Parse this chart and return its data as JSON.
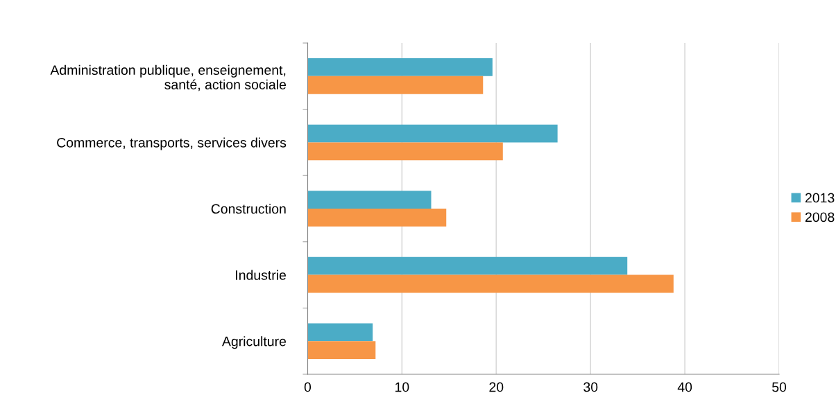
{
  "chart_data": {
    "type": "bar",
    "orientation": "horizontal",
    "categories": [
      "Administration publique, enseignement,\nsanté, action sociale",
      "Commerce, transports, services divers",
      "Construction",
      "Industrie",
      "Agriculture"
    ],
    "series": [
      {
        "name": "2013",
        "color": "#4bacc6",
        "values": [
          19.6,
          26.5,
          13.1,
          33.9,
          6.9
        ]
      },
      {
        "name": "2008",
        "color": "#f79646",
        "values": [
          18.6,
          20.7,
          14.7,
          38.8,
          7.2
        ]
      }
    ],
    "xlim": [
      0,
      50
    ],
    "xticks": [
      0,
      10,
      20,
      30,
      40,
      50
    ],
    "grid": "x",
    "legend": "right"
  }
}
